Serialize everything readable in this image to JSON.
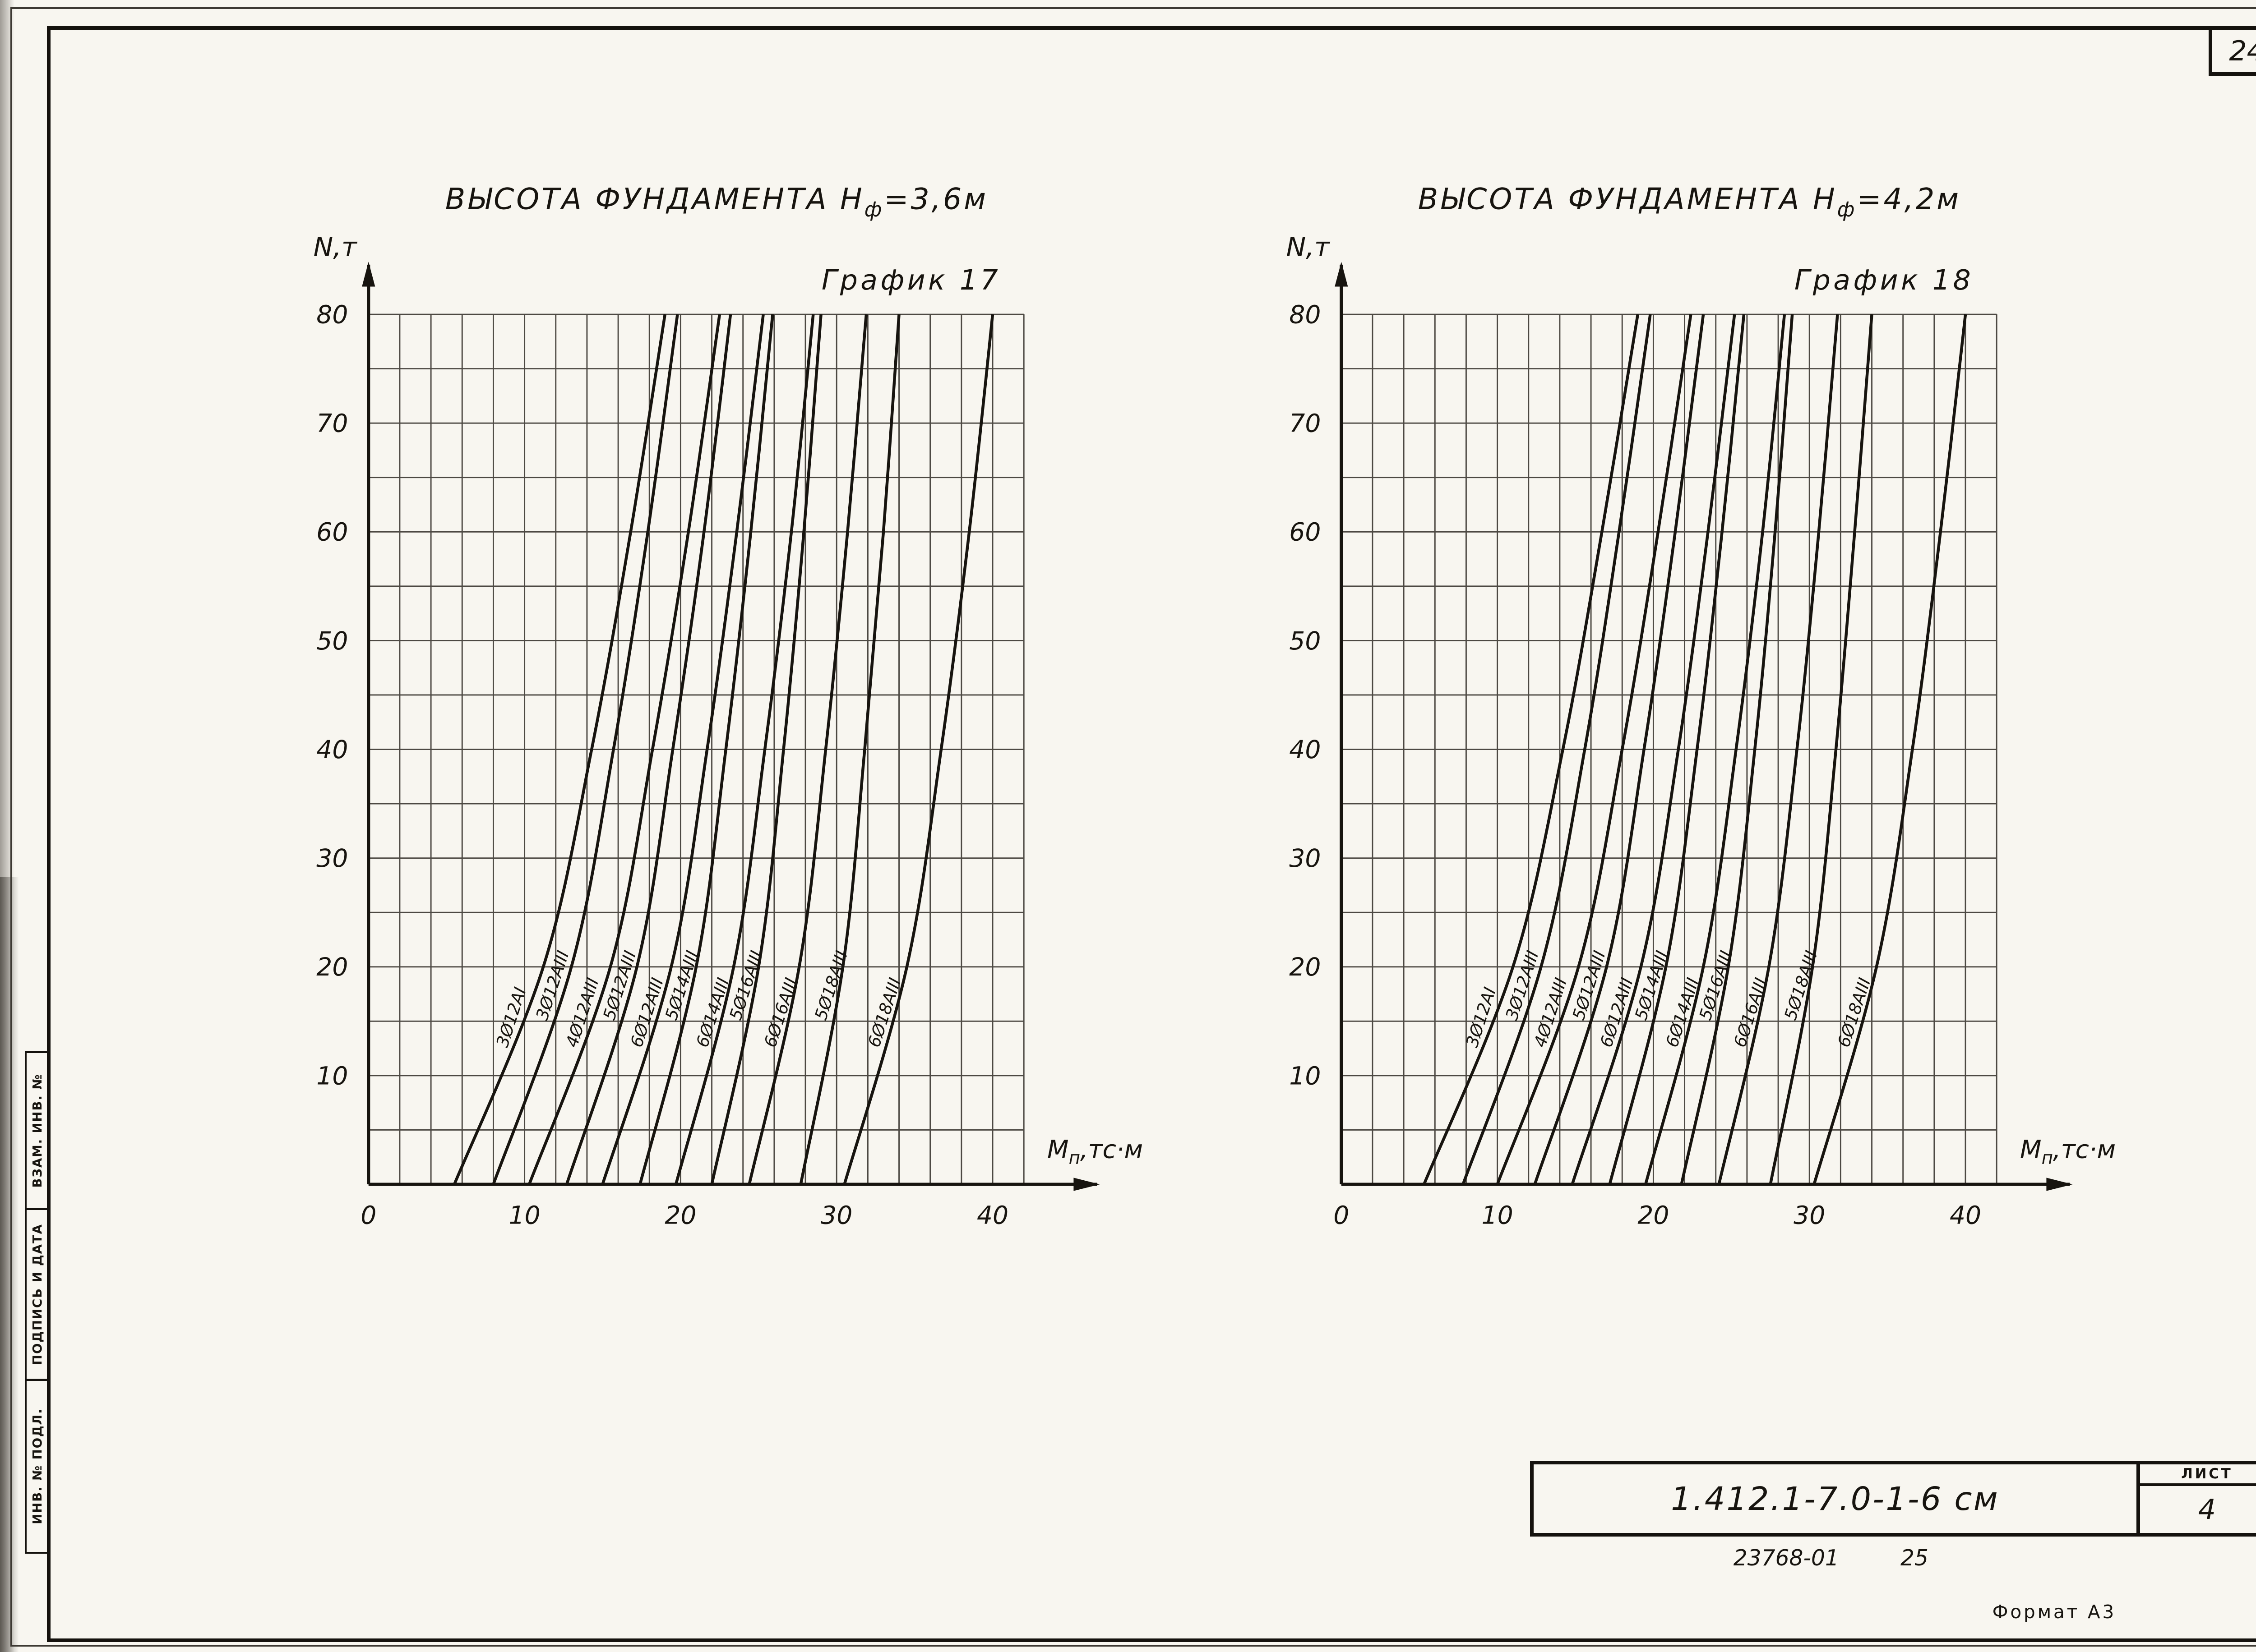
{
  "page": {
    "page_number": "24",
    "stamp": {
      "code": "1.412.1-7.0-1-6 см",
      "sheet_label": "ЛИСТ",
      "sheet_number": "4"
    },
    "ref_note": "23768-01",
    "ref_note2": "25",
    "format_note": "Формат А3",
    "side_labels": [
      "ВЗАМ. ИНВ. №",
      "ПОДПИСЬ И ДАТА",
      "ИНВ. № ПОДЛ."
    ]
  },
  "chart_data": [
    {
      "type": "line",
      "title": {
        "prefix": "ВЫСОТА ФУНДАМЕНТА Н",
        "sub": "ф",
        "suffix": "=3,6м"
      },
      "graph_label": "График 17",
      "ylabel": "N,т",
      "xlabel": {
        "prefix": "М",
        "sub": "п",
        "suffix": ",тс·м"
      },
      "xlim": [
        0,
        42
      ],
      "ylim": [
        0,
        80
      ],
      "x_ticks": [
        0,
        10,
        20,
        30,
        40
      ],
      "y_ticks": [
        10,
        20,
        30,
        40,
        50,
        60,
        70,
        80
      ],
      "x_minor_step": 2,
      "y_minor_step": 5,
      "grid": true,
      "legend": "labels-on-curves",
      "x_axis_units": "тс·м",
      "y_axis_units": "т",
      "N_points": [
        0,
        20,
        40,
        60,
        80
      ],
      "series": [
        {
          "name": "3Ø12АI",
          "M": [
            5.5,
            11.2,
            14.3,
            16.8,
            19.0
          ]
        },
        {
          "name": "3Ø12АIII",
          "M": [
            8.0,
            13.0,
            15.7,
            17.9,
            19.8
          ]
        },
        {
          "name": "4Ø12АIII",
          "M": [
            10.3,
            15.5,
            18.2,
            20.5,
            22.5
          ]
        },
        {
          "name": "5Ø12АIII",
          "M": [
            12.7,
            17.2,
            19.5,
            21.5,
            23.2
          ]
        },
        {
          "name": "6Ø12АIII",
          "M": [
            15.0,
            19.4,
            21.7,
            23.6,
            25.3
          ]
        },
        {
          "name": "5Ø14АIII",
          "M": [
            17.4,
            21.0,
            22.9,
            24.5,
            25.9
          ]
        },
        {
          "name": "6Ø14АIII",
          "M": [
            19.7,
            23.4,
            25.4,
            27.1,
            28.5
          ]
        },
        {
          "name": "5Ø16АIII",
          "M": [
            22.0,
            25.0,
            26.6,
            27.9,
            29.0
          ]
        },
        {
          "name": "6Ø16АIII",
          "M": [
            24.4,
            27.6,
            29.3,
            30.7,
            31.9
          ]
        },
        {
          "name": "5Ø18АIII",
          "M": [
            27.7,
            30.4,
            31.8,
            33.0,
            34.0
          ]
        },
        {
          "name": "6Ø18АIII",
          "M": [
            30.5,
            34.5,
            36.7,
            38.5,
            40.0
          ]
        }
      ]
    },
    {
      "type": "line",
      "title": {
        "prefix": "ВЫСОТА ФУНДАМЕНТА Н",
        "sub": "ф",
        "suffix": "=4,2м"
      },
      "graph_label": "График 18",
      "ylabel": "N,т",
      "xlabel": {
        "prefix": "М",
        "sub": "п",
        "suffix": ",тс·м"
      },
      "xlim": [
        0,
        42
      ],
      "ylim": [
        0,
        80
      ],
      "x_ticks": [
        0,
        10,
        20,
        30,
        40
      ],
      "y_ticks": [
        10,
        20,
        30,
        40,
        50,
        60,
        70,
        80
      ],
      "x_minor_step": 2,
      "y_minor_step": 5,
      "grid": true,
      "legend": "labels-on-curves",
      "x_axis_units": "тс·м",
      "y_axis_units": "т",
      "N_points": [
        0,
        20,
        40,
        60,
        80
      ],
      "series": [
        {
          "name": "3Ø12АI",
          "M": [
            5.3,
            11.0,
            14.2,
            16.7,
            19.0
          ]
        },
        {
          "name": "3Ø12АIII",
          "M": [
            7.8,
            12.8,
            15.6,
            17.8,
            19.8
          ]
        },
        {
          "name": "4Ø12АIII",
          "M": [
            10.0,
            15.2,
            18.0,
            20.3,
            22.4
          ]
        },
        {
          "name": "5Ø12АIII",
          "M": [
            12.4,
            17.0,
            19.4,
            21.4,
            23.2
          ]
        },
        {
          "name": "6Ø12АIII",
          "M": [
            14.8,
            19.2,
            21.6,
            23.5,
            25.2
          ]
        },
        {
          "name": "5Ø14АIII",
          "M": [
            17.2,
            20.8,
            22.8,
            24.4,
            25.8
          ]
        },
        {
          "name": "6Ø14АIII",
          "M": [
            19.5,
            23.2,
            25.3,
            27.0,
            28.4
          ]
        },
        {
          "name": "5Ø16АIII",
          "M": [
            21.8,
            24.8,
            26.5,
            27.8,
            28.9
          ]
        },
        {
          "name": "6Ø16АIII",
          "M": [
            24.2,
            27.4,
            29.2,
            30.6,
            31.8
          ]
        },
        {
          "name": "5Ø18АIII",
          "M": [
            27.5,
            30.2,
            31.7,
            32.9,
            34.0
          ]
        },
        {
          "name": "6Ø18АIII",
          "M": [
            30.3,
            34.3,
            36.6,
            38.4,
            40.0
          ]
        }
      ]
    }
  ]
}
